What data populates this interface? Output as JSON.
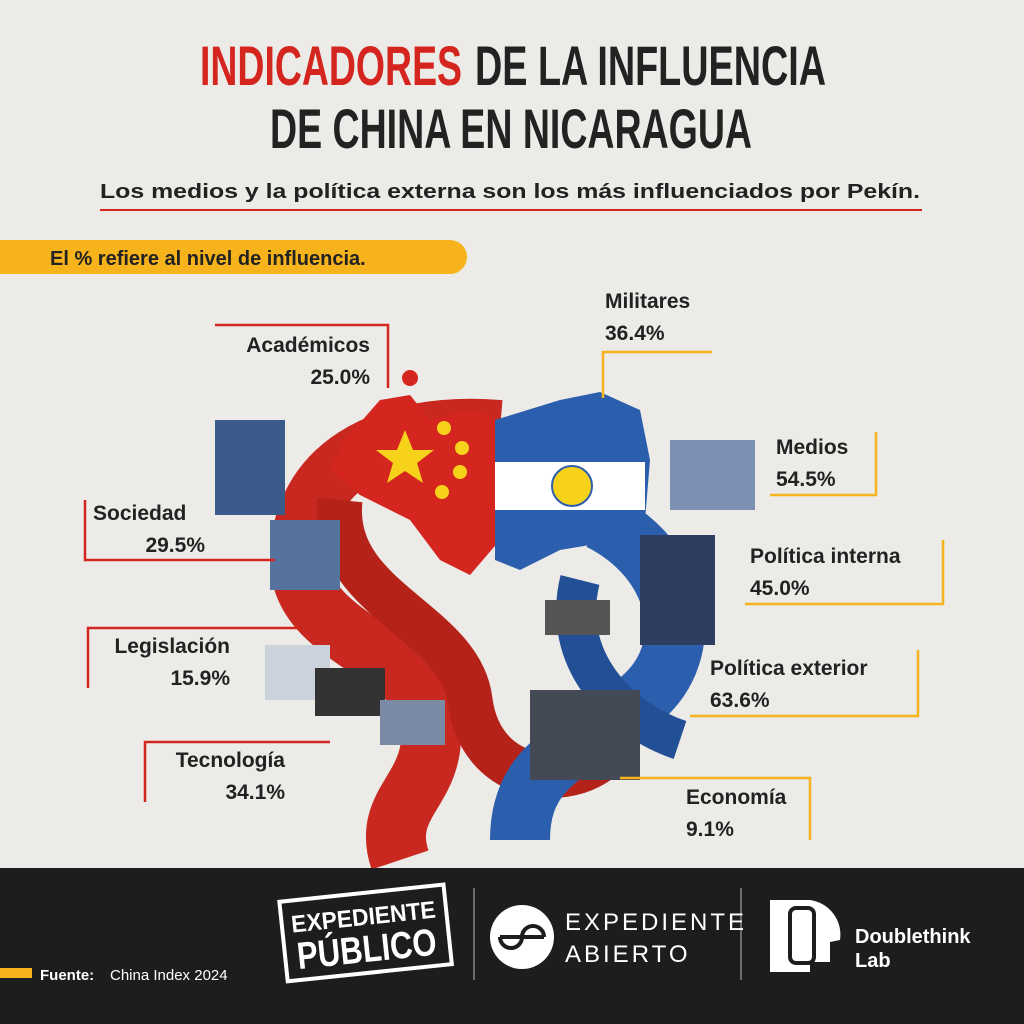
{
  "header": {
    "title_highlight": "INDICADORES",
    "title_rest": "DE LA INFLUENCIA",
    "title_line2": "DE CHINA EN NICARAGUA",
    "subtitle": "Los medios y la política externa son los más influenciados por Pekín.",
    "note": "El % refiere al nivel de influencia."
  },
  "indicators": [
    {
      "name": "Académicos",
      "value": "25.0%"
    },
    {
      "name": "Militares",
      "value": "36.4%"
    },
    {
      "name": "Medios",
      "value": "54.5%"
    },
    {
      "name": "Sociedad",
      "value": "29.5%"
    },
    {
      "name": "Política interna",
      "value": "45.0%"
    },
    {
      "name": "Legislación",
      "value": "15.9%"
    },
    {
      "name": "Política exterior",
      "value": "63.6%"
    },
    {
      "name": "Tecnología",
      "value": "34.1%"
    },
    {
      "name": "Economía",
      "value": "9.1%"
    }
  ],
  "footer": {
    "source_label": "Fuente:",
    "source": "China Index 2024",
    "logo1_line1": "EXPEDIENTE",
    "logo1_line2": "PÚBLICO",
    "logo2_line1": "EXPEDIENTE",
    "logo2_line2": "ABIERTO",
    "logo3_line1": "Doublethink",
    "logo3_line2": "Lab"
  }
}
